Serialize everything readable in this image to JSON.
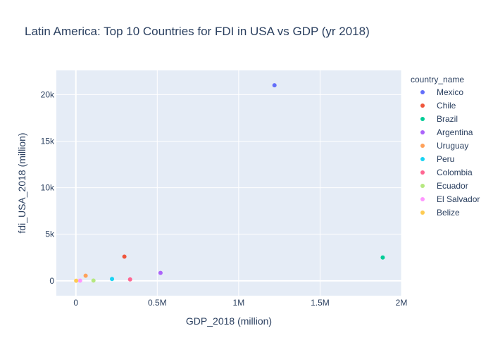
{
  "chart_data": {
    "type": "scatter",
    "title": "Latin America: Top 10 Countries for FDI in USA vs GDP (yr 2018)",
    "xlabel": "GDP_2018 (million)",
    "ylabel": "fdi_USA_2018 (million)",
    "xlim": [
      -120000,
      2000000
    ],
    "ylim": [
      -1600,
      22600
    ],
    "x_ticks": [
      {
        "value": 0,
        "label": "0"
      },
      {
        "value": 500000,
        "label": "0.5M"
      },
      {
        "value": 1000000,
        "label": "1M"
      },
      {
        "value": 1500000,
        "label": "1.5M"
      },
      {
        "value": 2000000,
        "label": "2M"
      }
    ],
    "y_ticks": [
      {
        "value": 0,
        "label": "0"
      },
      {
        "value": 5000,
        "label": "5k"
      },
      {
        "value": 10000,
        "label": "10k"
      },
      {
        "value": 15000,
        "label": "15k"
      },
      {
        "value": 20000,
        "label": "20k"
      }
    ],
    "grid": true,
    "legend": {
      "title": "country_name",
      "position": "right"
    },
    "series": [
      {
        "name": "Mexico",
        "color": "#636efa",
        "x": [
          1220000
        ],
        "y": [
          21000
        ]
      },
      {
        "name": "Chile",
        "color": "#EF553B",
        "x": [
          298000
        ],
        "y": [
          2600
        ]
      },
      {
        "name": "Brazil",
        "color": "#00cc96",
        "x": [
          1885000
        ],
        "y": [
          2500
        ]
      },
      {
        "name": "Argentina",
        "color": "#ab63fa",
        "x": [
          520000
        ],
        "y": [
          850
        ]
      },
      {
        "name": "Uruguay",
        "color": "#FFA15A",
        "x": [
          60000
        ],
        "y": [
          550
        ]
      },
      {
        "name": "Peru",
        "color": "#19d3f3",
        "x": [
          222000
        ],
        "y": [
          200
        ]
      },
      {
        "name": "Colombia",
        "color": "#FF6692",
        "x": [
          333000
        ],
        "y": [
          150
        ]
      },
      {
        "name": "Ecuador",
        "color": "#B6E880",
        "x": [
          108000
        ],
        "y": [
          30
        ]
      },
      {
        "name": "El Salvador",
        "color": "#FF97FF",
        "x": [
          26000
        ],
        "y": [
          20
        ]
      },
      {
        "name": "Belize",
        "color": "#FECB52",
        "x": [
          1900
        ],
        "y": [
          10
        ]
      }
    ]
  }
}
